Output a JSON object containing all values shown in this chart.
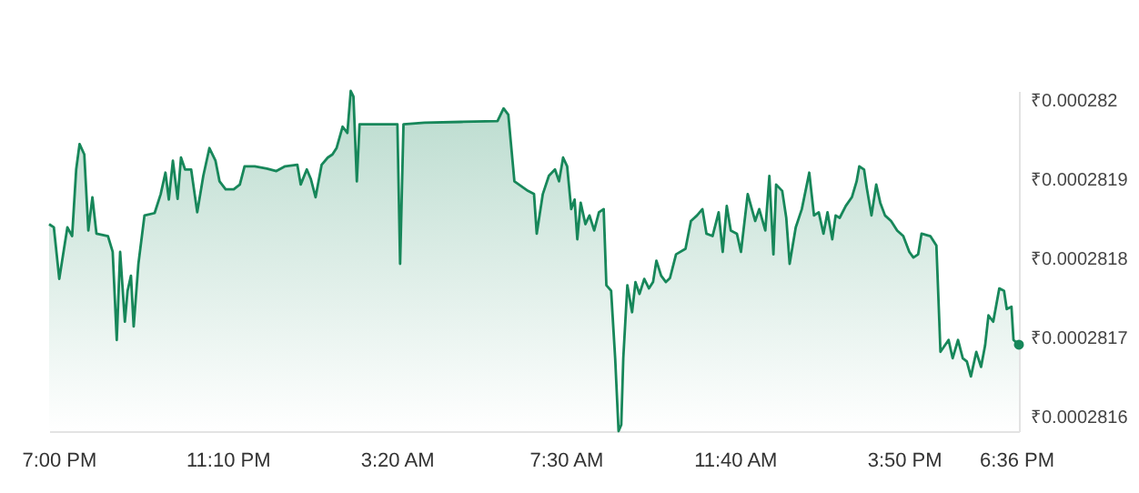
{
  "chart_data": {
    "type": "area",
    "color": "#17875a",
    "x": [
      "--01-01T18:46",
      "--01-01T18:53",
      "--01-01T19:01",
      "--01-01T19:08",
      "--01-01T19:13",
      "--01-01T19:20",
      "--01-01T19:26",
      "--01-01T19:31",
      "--01-01T19:38",
      "--01-01T19:44",
      "--01-01T19:50",
      "--01-01T19:56",
      "--01-01T20:07",
      "--01-01T20:13",
      "--01-01T20:20",
      "--01-01T20:26",
      "--01-01T20:31",
      "--01-01T20:38",
      "--01-01T20:42",
      "--01-01T20:47",
      "--01-01T20:51",
      "--01-01T20:58",
      "--01-01T21:07",
      "--01-01T21:22",
      "--01-01T21:31",
      "--01-01T21:38",
      "--01-01T21:43",
      "--01-01T21:49",
      "--01-01T21:56",
      "--01-01T22:01",
      "--01-01T22:07",
      "--01-01T22:16",
      "--01-01T22:25",
      "--01-01T22:34",
      "--01-01T22:43",
      "--01-01T22:52",
      "--01-01T22:58",
      "--01-01T23:07",
      "--01-01T23:19",
      "--01-01T23:28",
      "--01-01T23:35",
      "--01-01T23:50",
      "--01-02T00:08",
      "--01-02T00:22",
      "--01-02T00:35",
      "--01-02T00:53",
      "--01-02T00:58",
      "--01-02T01:07",
      "--01-02T01:13",
      "--01-02T01:20",
      "--01-02T01:29",
      "--01-02T01:38",
      "--01-02T01:45",
      "--01-02T01:51",
      "--01-02T02:00",
      "--01-02T02:07",
      "--01-02T02:12",
      "--01-02T02:16",
      "--01-02T02:21",
      "--01-02T02:25",
      "--01-02T02:41",
      "--01-02T03:21",
      "--01-02T03:25",
      "--01-02T03:30",
      "--01-02T04:01",
      "--01-02T04:55",
      "--01-02T05:49",
      "--01-02T05:58",
      "--01-02T06:05",
      "--01-02T06:14",
      "--01-02T06:34",
      "--01-02T06:43",
      "--01-02T06:47",
      "--01-02T06:56",
      "--01-02T07:05",
      "--01-02T07:14",
      "--01-02T07:20",
      "--01-02T07:26",
      "--01-02T07:32",
      "--01-02T07:38",
      "--01-02T07:43",
      "--01-02T07:47",
      "--01-02T07:52",
      "--01-02T07:59",
      "--01-02T08:05",
      "--01-02T08:12",
      "--01-02T08:19",
      "--01-02T08:26",
      "--01-02T08:30",
      "--01-02T08:37",
      "--01-02T08:43",
      "--01-02T08:48",
      "--01-02T08:52",
      "--01-02T08:55",
      "--01-02T09:01",
      "--01-02T09:08",
      "--01-02T09:13",
      "--01-02T09:19",
      "--01-02T09:26",
      "--01-02T09:33",
      "--01-02T09:39",
      "--01-02T09:44",
      "--01-02T09:51",
      "--01-02T09:58",
      "--01-02T10:04",
      "--01-02T10:13",
      "--01-02T10:27",
      "--01-02T10:35",
      "--01-02T10:44",
      "--01-02T10:52",
      "--01-02T10:58",
      "--01-02T11:07",
      "--01-02T11:16",
      "--01-02T11:22",
      "--01-02T11:28",
      "--01-02T11:34",
      "--01-02T11:43",
      "--01-02T11:49",
      "--01-02T11:59",
      "--01-02T12:10",
      "--01-02T12:16",
      "--01-02T12:25",
      "--01-02T12:31",
      "--01-02T12:37",
      "--01-02T12:41",
      "--01-02T12:50",
      "--01-02T12:56",
      "--01-02T13:01",
      "--01-02T13:10",
      "--01-02T13:19",
      "--01-02T13:30",
      "--01-02T13:37",
      "--01-02T13:44",
      "--01-02T13:51",
      "--01-02T13:57",
      "--01-02T14:04",
      "--01-02T14:09",
      "--01-02T14:15",
      "--01-02T14:24",
      "--01-02T14:33",
      "--01-02T14:40",
      "--01-02T14:44",
      "--01-02T14:51",
      "--01-02T14:55",
      "--01-02T15:02",
      "--01-02T15:09",
      "--01-02T15:15",
      "--01-02T15:22",
      "--01-02T15:31",
      "--01-02T15:40",
      "--01-02T15:49",
      "--01-02T15:58",
      "--01-02T16:04",
      "--01-02T16:11",
      "--01-02T16:16",
      "--01-02T16:29",
      "--01-02T16:38",
      "--01-02T16:44",
      "--01-02T16:56",
      "--01-02T17:02",
      "--01-02T17:10",
      "--01-02T17:17",
      "--01-02T17:23",
      "--01-02T17:29",
      "--01-02T17:37",
      "--01-02T17:44",
      "--01-02T17:50",
      "--01-02T17:55",
      "--01-02T18:02",
      "--01-02T18:11",
      "--01-02T18:18",
      "--01-02T18:22",
      "--01-02T18:29",
      "--01-02T18:32",
      "--01-02T18:40"
    ],
    "values": [
      0.000281843,
      0.000281839,
      0.000281774,
      0.000281812,
      0.000281839,
      0.000281828,
      0.000281912,
      0.000281944,
      0.000281931,
      0.000281835,
      0.000281877,
      0.000281831,
      0.000281829,
      0.000281828,
      0.000281808,
      0.000281697,
      0.000281808,
      0.00028172,
      0.000281759,
      0.000281778,
      0.000281714,
      0.000281793,
      0.000281854,
      0.000281857,
      0.000281881,
      0.000281908,
      0.000281874,
      0.000281923,
      0.000281875,
      0.000281927,
      0.000281912,
      0.000281912,
      0.000281858,
      0.000281904,
      0.000281939,
      0.000281923,
      0.000281897,
      0.000281887,
      0.000281887,
      0.000281893,
      0.000281916,
      0.000281916,
      0.000281913,
      0.00028191,
      0.000281916,
      0.000281918,
      0.000281893,
      0.000281912,
      0.0002819,
      0.000281877,
      0.000281918,
      0.000281927,
      0.000281931,
      0.000281939,
      0.000281966,
      0.000281958,
      0.000282011,
      0.000282004,
      0.000281897,
      0.000281969,
      0.000281969,
      0.000281969,
      0.000281793,
      0.000281969,
      0.000281971,
      0.000281972,
      0.000281973,
      0.000281989,
      0.000281981,
      0.000281897,
      0.000281885,
      0.000281881,
      0.000281831,
      0.000281881,
      0.000281904,
      0.000281912,
      0.000281897,
      0.000281927,
      0.000281916,
      0.000281862,
      0.000281874,
      0.000281824,
      0.00028187,
      0.000281843,
      0.000281854,
      0.000281835,
      0.000281858,
      0.000281862,
      0.000281766,
      0.000281759,
      0.000281674,
      0.000281582,
      0.00028159,
      0.000281674,
      0.000281766,
      0.000281732,
      0.00028177,
      0.000281755,
      0.000281774,
      0.000281762,
      0.00028177,
      0.000281797,
      0.000281778,
      0.00028177,
      0.000281775,
      0.000281805,
      0.000281812,
      0.000281847,
      0.000281854,
      0.000281862,
      0.000281831,
      0.000281828,
      0.000281858,
      0.000281808,
      0.000281866,
      0.000281835,
      0.000281831,
      0.000281808,
      0.000281881,
      0.000281847,
      0.000281862,
      0.000281835,
      0.000281904,
      0.000281805,
      0.000281893,
      0.000281885,
      0.000281851,
      0.000281793,
      0.000281839,
      0.000281862,
      0.000281908,
      0.000281854,
      0.000281858,
      0.000281831,
      0.000281858,
      0.000281824,
      0.000281854,
      0.000281851,
      0.000281866,
      0.000281877,
      0.000281897,
      0.000281916,
      0.000281912,
      0.000281889,
      0.000281854,
      0.000281893,
      0.00028187,
      0.000281854,
      0.000281847,
      0.000281835,
      0.000281828,
      0.000281808,
      0.000281801,
      0.000281805,
      0.000281831,
      0.000281828,
      0.000281816,
      0.000281682,
      0.000281697,
      0.000281674,
      0.000281697,
      0.000281674,
      0.00028167,
      0.000281651,
      0.000281682,
      0.000281663,
      0.00028169,
      0.000281728,
      0.00028172,
      0.000281762,
      0.000281759,
      0.000281736,
      0.000281739,
      0.000281697,
      0.000281691
    ],
    "xticks": [
      {
        "value": "--01-01T19:00",
        "label": "7:00 PM"
      },
      {
        "value": "--01-01T23:10",
        "label": "11:10 PM"
      },
      {
        "value": "--01-02T03:20",
        "label": "3:20 AM"
      },
      {
        "value": "--01-02T07:30",
        "label": "7:30 AM"
      },
      {
        "value": "--01-02T11:40",
        "label": "11:40 AM"
      },
      {
        "value": "--01-02T15:50",
        "label": "3:50 PM"
      },
      {
        "value": "--01-02T18:36",
        "label": "6:36 PM"
      }
    ],
    "xlim": [
      "--01-01T18:46",
      "--01-02T18:40"
    ],
    "ylim": [
      0.000281582,
      0.000282011
    ],
    "yticks": [
      {
        "value": 0.000282,
        "label": "₹0.000282"
      },
      {
        "value": 0.0002819,
        "label": "₹0.0002819"
      },
      {
        "value": 0.0002818,
        "label": "₹0.0002818"
      },
      {
        "value": 0.0002817,
        "label": "₹0.0002817"
      },
      {
        "value": 0.0002816,
        "label": "₹0.0002816"
      }
    ]
  }
}
